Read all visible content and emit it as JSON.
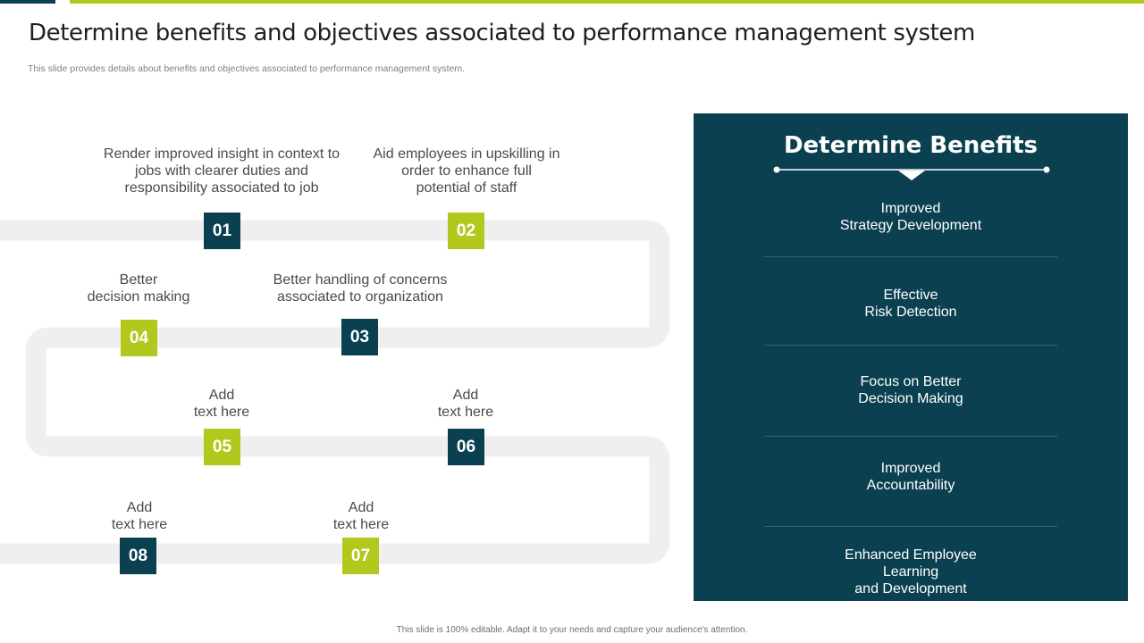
{
  "title": "Determine benefits and objectives associated to performance management system",
  "subtitle": "This slide provides details about benefits and objectives associated to performance management system.",
  "steps": [
    {
      "number": "01",
      "lines": [
        "Render improved insight in context to",
        "jobs with clearer duties and",
        "responsibility associated to job"
      ],
      "color": "#0b4050"
    },
    {
      "number": "02",
      "lines": [
        "Aid employees in upskilling in",
        "order to enhance full",
        "potential of staff"
      ],
      "color": "#b3c81c"
    },
    {
      "number": "03",
      "lines": [
        "Better handling of concerns",
        "associated to organization"
      ],
      "color": "#0b4050"
    },
    {
      "number": "04",
      "lines": [
        "Better",
        "decision making"
      ],
      "color": "#b3c81c"
    },
    {
      "number": "05",
      "lines": [
        "Add",
        "text here"
      ],
      "color": "#b3c81c"
    },
    {
      "number": "06",
      "lines": [
        "Add",
        "text here"
      ],
      "color": "#0b4050"
    },
    {
      "number": "07",
      "lines": [
        "Add",
        "text here"
      ],
      "color": "#b3c81c"
    },
    {
      "number": "08",
      "lines": [
        "Add",
        "text here"
      ],
      "color": "#0b4050"
    }
  ],
  "benefits": {
    "title": "Determine Benefits",
    "items": [
      {
        "lines": [
          "Improved",
          "Strategy Development"
        ]
      },
      {
        "lines": [
          "Effective",
          "Risk Detection"
        ]
      },
      {
        "lines": [
          "Focus on Better",
          "Decision Making"
        ]
      },
      {
        "lines": [
          "Improved",
          "Accountability"
        ]
      },
      {
        "lines": [
          "Enhanced Employee",
          "Learning",
          "and Development"
        ]
      }
    ]
  },
  "footer": "This slide is 100% editable. Adapt it to your needs and capture your audience's attention.",
  "colors": {
    "dark": "#0b4050",
    "accent": "#b3c81c",
    "road": "#efefef"
  }
}
